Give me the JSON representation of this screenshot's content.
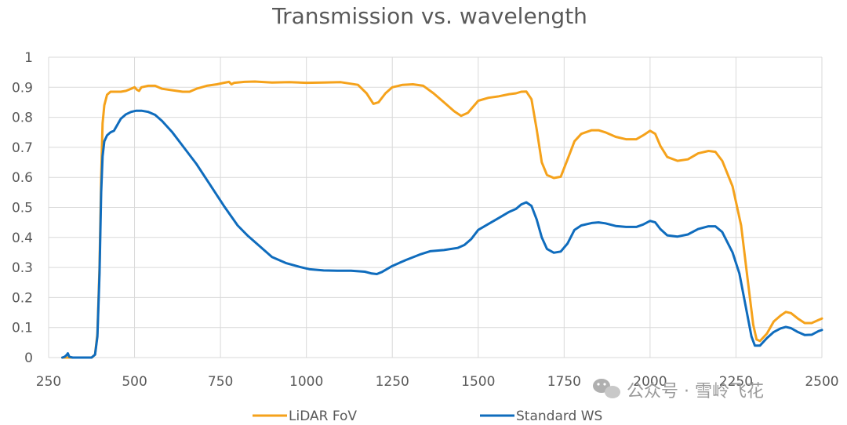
{
  "chart_data": {
    "type": "line",
    "title": "Transmission vs. wavelength",
    "xlabel": "",
    "ylabel": "",
    "xlim": [
      250,
      2500
    ],
    "ylim": [
      0,
      1
    ],
    "x_ticks": [
      250,
      500,
      750,
      1000,
      1250,
      1500,
      1750,
      2000,
      2250,
      2500
    ],
    "y_ticks": [
      0,
      0.1,
      0.2,
      0.3,
      0.4,
      0.5,
      0.6,
      0.7,
      0.8,
      0.9,
      1
    ],
    "x_tick_labels": [
      "250",
      "500",
      "750",
      "1000",
      "1250",
      "1500",
      "1750",
      "2000",
      "2250",
      "2500"
    ],
    "y_tick_labels": [
      "0",
      "0.1",
      "0.2",
      "0.3",
      "0.4",
      "0.5",
      "0.6",
      "0.7",
      "0.8",
      "0.9",
      "1"
    ],
    "grid": "vertical and horizontal",
    "legend_position": "bottom",
    "series": [
      {
        "name": "LiDAR FoV",
        "color": "#F5A21B",
        "points": [
          [
            290,
            0
          ],
          [
            300,
            0
          ],
          [
            320,
            0
          ],
          [
            340,
            0
          ],
          [
            360,
            0
          ],
          [
            375,
            0
          ],
          [
            385,
            0.01
          ],
          [
            392,
            0.08
          ],
          [
            398,
            0.3
          ],
          [
            403,
            0.6
          ],
          [
            407,
            0.78
          ],
          [
            412,
            0.84
          ],
          [
            420,
            0.875
          ],
          [
            430,
            0.885
          ],
          [
            445,
            0.885
          ],
          [
            460,
            0.885
          ],
          [
            475,
            0.888
          ],
          [
            490,
            0.895
          ],
          [
            500,
            0.9
          ],
          [
            507,
            0.892
          ],
          [
            513,
            0.888
          ],
          [
            520,
            0.9
          ],
          [
            540,
            0.905
          ],
          [
            560,
            0.905
          ],
          [
            580,
            0.895
          ],
          [
            610,
            0.89
          ],
          [
            640,
            0.885
          ],
          [
            660,
            0.885
          ],
          [
            680,
            0.895
          ],
          [
            710,
            0.905
          ],
          [
            740,
            0.91
          ],
          [
            760,
            0.915
          ],
          [
            775,
            0.918
          ],
          [
            782,
            0.91
          ],
          [
            790,
            0.915
          ],
          [
            820,
            0.918
          ],
          [
            850,
            0.919
          ],
          [
            900,
            0.916
          ],
          [
            950,
            0.917
          ],
          [
            1000,
            0.915
          ],
          [
            1050,
            0.916
          ],
          [
            1100,
            0.917
          ],
          [
            1150,
            0.908
          ],
          [
            1175,
            0.88
          ],
          [
            1195,
            0.845
          ],
          [
            1210,
            0.85
          ],
          [
            1230,
            0.88
          ],
          [
            1250,
            0.9
          ],
          [
            1280,
            0.908
          ],
          [
            1310,
            0.91
          ],
          [
            1340,
            0.905
          ],
          [
            1370,
            0.88
          ],
          [
            1400,
            0.85
          ],
          [
            1430,
            0.82
          ],
          [
            1450,
            0.805
          ],
          [
            1470,
            0.815
          ],
          [
            1500,
            0.855
          ],
          [
            1530,
            0.865
          ],
          [
            1560,
            0.87
          ],
          [
            1590,
            0.877
          ],
          [
            1610,
            0.88
          ],
          [
            1625,
            0.885
          ],
          [
            1640,
            0.886
          ],
          [
            1655,
            0.86
          ],
          [
            1670,
            0.76
          ],
          [
            1685,
            0.65
          ],
          [
            1700,
            0.608
          ],
          [
            1720,
            0.598
          ],
          [
            1740,
            0.602
          ],
          [
            1760,
            0.66
          ],
          [
            1780,
            0.72
          ],
          [
            1800,
            0.745
          ],
          [
            1830,
            0.757
          ],
          [
            1850,
            0.757
          ],
          [
            1870,
            0.75
          ],
          [
            1900,
            0.735
          ],
          [
            1930,
            0.727
          ],
          [
            1960,
            0.727
          ],
          [
            1980,
            0.74
          ],
          [
            2000,
            0.755
          ],
          [
            2015,
            0.745
          ],
          [
            2030,
            0.705
          ],
          [
            2050,
            0.668
          ],
          [
            2080,
            0.655
          ],
          [
            2110,
            0.66
          ],
          [
            2140,
            0.68
          ],
          [
            2170,
            0.688
          ],
          [
            2190,
            0.685
          ],
          [
            2210,
            0.655
          ],
          [
            2240,
            0.57
          ],
          [
            2265,
            0.44
          ],
          [
            2285,
            0.25
          ],
          [
            2300,
            0.11
          ],
          [
            2310,
            0.06
          ],
          [
            2320,
            0.055
          ],
          [
            2340,
            0.08
          ],
          [
            2360,
            0.12
          ],
          [
            2380,
            0.14
          ],
          [
            2395,
            0.152
          ],
          [
            2410,
            0.148
          ],
          [
            2430,
            0.13
          ],
          [
            2450,
            0.115
          ],
          [
            2470,
            0.115
          ],
          [
            2490,
            0.125
          ],
          [
            2500,
            0.13
          ]
        ]
      },
      {
        "name": "Standard WS",
        "color": "#0F6CBD",
        "points": [
          [
            290,
            0
          ],
          [
            297,
            0.003
          ],
          [
            302,
            0.008
          ],
          [
            306,
            0.014
          ],
          [
            310,
            0.003
          ],
          [
            320,
            0
          ],
          [
            340,
            0
          ],
          [
            360,
            0
          ],
          [
            375,
            0
          ],
          [
            385,
            0.01
          ],
          [
            392,
            0.07
          ],
          [
            398,
            0.28
          ],
          [
            403,
            0.55
          ],
          [
            407,
            0.67
          ],
          [
            412,
            0.72
          ],
          [
            420,
            0.74
          ],
          [
            430,
            0.75
          ],
          [
            440,
            0.755
          ],
          [
            450,
            0.775
          ],
          [
            460,
            0.795
          ],
          [
            475,
            0.81
          ],
          [
            490,
            0.818
          ],
          [
            505,
            0.822
          ],
          [
            520,
            0.822
          ],
          [
            540,
            0.818
          ],
          [
            560,
            0.808
          ],
          [
            580,
            0.788
          ],
          [
            610,
            0.75
          ],
          [
            640,
            0.705
          ],
          [
            680,
            0.645
          ],
          [
            720,
            0.575
          ],
          [
            760,
            0.505
          ],
          [
            800,
            0.44
          ],
          [
            830,
            0.405
          ],
          [
            860,
            0.375
          ],
          [
            900,
            0.335
          ],
          [
            940,
            0.315
          ],
          [
            980,
            0.302
          ],
          [
            1010,
            0.294
          ],
          [
            1050,
            0.29
          ],
          [
            1090,
            0.289
          ],
          [
            1130,
            0.289
          ],
          [
            1170,
            0.286
          ],
          [
            1190,
            0.28
          ],
          [
            1205,
            0.278
          ],
          [
            1220,
            0.285
          ],
          [
            1250,
            0.305
          ],
          [
            1290,
            0.325
          ],
          [
            1330,
            0.343
          ],
          [
            1360,
            0.354
          ],
          [
            1400,
            0.358
          ],
          [
            1440,
            0.365
          ],
          [
            1460,
            0.375
          ],
          [
            1480,
            0.395
          ],
          [
            1500,
            0.425
          ],
          [
            1530,
            0.445
          ],
          [
            1560,
            0.465
          ],
          [
            1590,
            0.485
          ],
          [
            1610,
            0.495
          ],
          [
            1625,
            0.51
          ],
          [
            1640,
            0.517
          ],
          [
            1655,
            0.505
          ],
          [
            1670,
            0.46
          ],
          [
            1685,
            0.4
          ],
          [
            1700,
            0.362
          ],
          [
            1720,
            0.349
          ],
          [
            1740,
            0.353
          ],
          [
            1760,
            0.38
          ],
          [
            1780,
            0.425
          ],
          [
            1800,
            0.44
          ],
          [
            1830,
            0.448
          ],
          [
            1850,
            0.45
          ],
          [
            1870,
            0.447
          ],
          [
            1900,
            0.438
          ],
          [
            1930,
            0.435
          ],
          [
            1960,
            0.435
          ],
          [
            1980,
            0.443
          ],
          [
            2000,
            0.455
          ],
          [
            2015,
            0.45
          ],
          [
            2030,
            0.428
          ],
          [
            2050,
            0.407
          ],
          [
            2080,
            0.403
          ],
          [
            2110,
            0.41
          ],
          [
            2140,
            0.428
          ],
          [
            2170,
            0.437
          ],
          [
            2190,
            0.437
          ],
          [
            2210,
            0.418
          ],
          [
            2240,
            0.35
          ],
          [
            2260,
            0.28
          ],
          [
            2280,
            0.16
          ],
          [
            2295,
            0.07
          ],
          [
            2305,
            0.04
          ],
          [
            2320,
            0.04
          ],
          [
            2340,
            0.065
          ],
          [
            2360,
            0.085
          ],
          [
            2380,
            0.097
          ],
          [
            2395,
            0.102
          ],
          [
            2410,
            0.098
          ],
          [
            2430,
            0.085
          ],
          [
            2450,
            0.075
          ],
          [
            2470,
            0.076
          ],
          [
            2490,
            0.088
          ],
          [
            2500,
            0.092
          ]
        ]
      }
    ]
  },
  "watermark": {
    "text": "公众号 · 雪岭飞花",
    "icon": "wechat-icon"
  }
}
